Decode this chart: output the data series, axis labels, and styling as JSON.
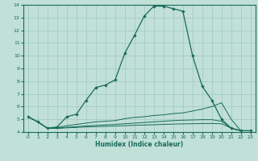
{
  "xlabel": "Humidex (Indice chaleur)",
  "xlim": [
    -0.5,
    23.5
  ],
  "ylim": [
    4,
    14
  ],
  "xticks": [
    0,
    1,
    2,
    3,
    4,
    5,
    6,
    7,
    8,
    9,
    10,
    11,
    12,
    13,
    14,
    15,
    16,
    17,
    18,
    19,
    20,
    21,
    22,
    23
  ],
  "yticks": [
    4,
    5,
    6,
    7,
    8,
    9,
    10,
    11,
    12,
    13,
    14
  ],
  "bg_color": "#c0e0d8",
  "line_color": "#1a6b5a",
  "grid_color": "#a0c8c0",
  "curves": [
    [
      5.2,
      4.8,
      4.3,
      4.4,
      5.2,
      5.4,
      6.5,
      7.5,
      7.7,
      8.1,
      10.2,
      11.6,
      13.1,
      13.9,
      13.9,
      13.7,
      13.5,
      10.0,
      7.6,
      6.5,
      5.0,
      4.3,
      4.1,
      4.1
    ],
    [
      5.2,
      4.8,
      4.3,
      4.35,
      4.5,
      4.6,
      4.7,
      4.8,
      4.85,
      4.9,
      5.05,
      5.15,
      5.2,
      5.3,
      5.35,
      5.45,
      5.5,
      5.65,
      5.8,
      6.0,
      6.3,
      5.0,
      4.1,
      4.1
    ],
    [
      5.2,
      4.8,
      4.3,
      4.3,
      4.38,
      4.42,
      4.48,
      4.52,
      4.56,
      4.6,
      4.65,
      4.7,
      4.75,
      4.8,
      4.85,
      4.9,
      4.93,
      4.95,
      4.97,
      4.97,
      4.85,
      4.3,
      4.1,
      4.1
    ],
    [
      5.2,
      4.8,
      4.3,
      4.28,
      4.33,
      4.36,
      4.4,
      4.42,
      4.45,
      4.47,
      4.5,
      4.53,
      4.55,
      4.57,
      4.6,
      4.62,
      4.64,
      4.65,
      4.67,
      4.67,
      4.65,
      4.3,
      4.1,
      4.1
    ]
  ],
  "use_markers": [
    true,
    false,
    false,
    false
  ]
}
